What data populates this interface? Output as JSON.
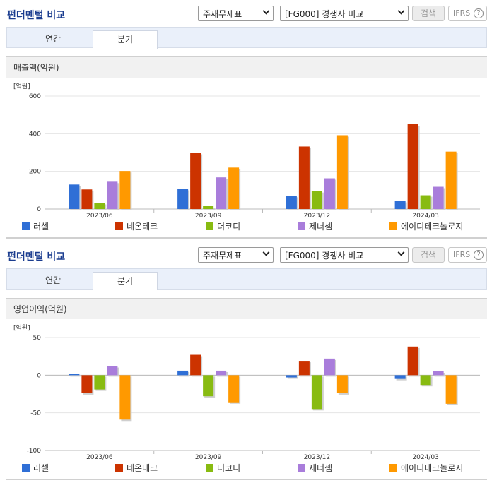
{
  "colors": {
    "title": "#1a3c8f",
    "series": [
      "#2f6fd6",
      "#cc3300",
      "#88bb11",
      "#a97ddb",
      "#ff9900"
    ]
  },
  "icons": {
    "select_arrow": "chevron-down-icon",
    "help": "question-circle-icon"
  },
  "panels": [
    {
      "title": "펀더멘털 비교",
      "controls": {
        "select1": "주재무제표",
        "select2": "[FG000] 경쟁사 비교",
        "search_label": "검색",
        "ifrs_label": "IFRS",
        "help_glyph": "?"
      },
      "tabs": [
        {
          "label": "연간"
        },
        {
          "label": "분기"
        }
      ],
      "active_tab": "분기",
      "metric_label": "매출액(억원)",
      "chart_data": {
        "type": "bar",
        "unit": "[억원]",
        "categories": [
          "2023/06",
          "2023/09",
          "2023/12",
          "2024/03"
        ],
        "ylim": [
          0,
          600
        ],
        "yticks": [
          "600",
          "400",
          "200",
          "0"
        ],
        "series": [
          {
            "name": "러셀",
            "values": [
              130,
              107,
              70,
              43
            ]
          },
          {
            "name": "네온테크",
            "values": [
              104,
              298,
              332,
              450
            ]
          },
          {
            "name": "더코디",
            "values": [
              32,
              15,
              95,
              73
            ]
          },
          {
            "name": "제너셈",
            "values": [
              145,
              168,
              163,
              118
            ]
          },
          {
            "name": "에이디테크놀로지",
            "values": [
              202,
              220,
              392,
              305
            ]
          }
        ]
      }
    },
    {
      "title": "펀더멘털 비교",
      "controls": {
        "select1": "주재무제표",
        "select2": "[FG000] 경쟁사 비교",
        "search_label": "검색",
        "ifrs_label": "IFRS",
        "help_glyph": "?"
      },
      "tabs": [
        {
          "label": "연간"
        },
        {
          "label": "분기"
        }
      ],
      "active_tab": "분기",
      "metric_label": "영업이익(억원)",
      "chart_data": {
        "type": "bar",
        "unit": "[억원]",
        "categories": [
          "2023/06",
          "2023/09",
          "2023/12",
          "2024/03"
        ],
        "ylim": [
          -100,
          50
        ],
        "yticks": [
          "50",
          "0",
          "-50",
          "-100"
        ],
        "series": [
          {
            "name": "러셀",
            "values": [
              2,
              6,
              -3,
              -5
            ]
          },
          {
            "name": "네온테크",
            "values": [
              -24,
              27,
              19,
              38
            ]
          },
          {
            "name": "더코디",
            "values": [
              -19,
              -28,
              -45,
              -13
            ]
          },
          {
            "name": "제너셈",
            "values": [
              12,
              6,
              22,
              5
            ]
          },
          {
            "name": "에이디테크놀로지",
            "values": [
              -59,
              -36,
              -24,
              -38
            ]
          }
        ]
      }
    }
  ]
}
